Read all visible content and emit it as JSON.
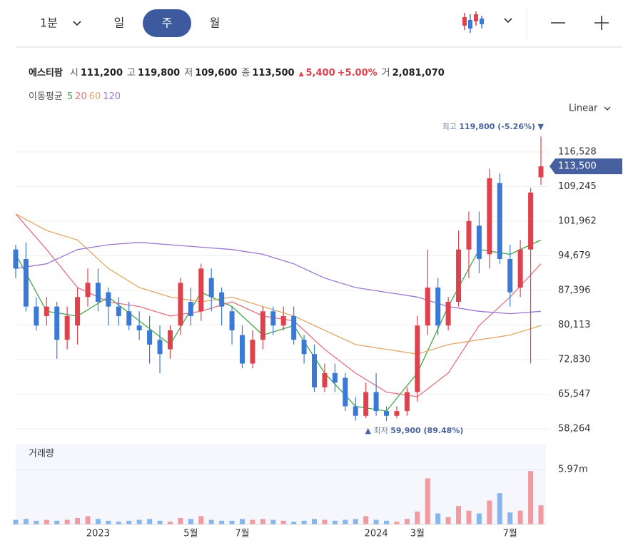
{
  "toolbar": {
    "interval": "1분",
    "tabs": [
      "일",
      "주",
      "월"
    ],
    "active": 1
  },
  "quote": {
    "name": "에스티팜",
    "fields": [
      {
        "label": "시",
        "value": "111,200"
      },
      {
        "label": "고",
        "value": "119,800"
      },
      {
        "label": "저",
        "value": "109,600"
      },
      {
        "label": "종",
        "value": "113,500"
      }
    ],
    "change_arrow": "▲",
    "change": "5,400",
    "change_pct": "+5.00%",
    "volume_label": "거",
    "volume": "2,081,070"
  },
  "ma_label": "이동평균",
  "scale_mode": "Linear",
  "chart_data": {
    "type": "candlestick",
    "categories": [
      null,
      null,
      null,
      null,
      null,
      null,
      null,
      null,
      "2023",
      null,
      null,
      null,
      null,
      null,
      null,
      null,
      null,
      "5월",
      null,
      null,
      null,
      null,
      "7월",
      null,
      null,
      null,
      null,
      null,
      null,
      null,
      null,
      null,
      null,
      null,
      null,
      "2024",
      null,
      null,
      null,
      "3월",
      null,
      null,
      null,
      null,
      null,
      null,
      null,
      null,
      "7월",
      null,
      null,
      null
    ],
    "open": [
      96000,
      94000,
      84000,
      82000,
      84000,
      77000,
      80000,
      86000,
      89000,
      87000,
      84000,
      83000,
      80000,
      79000,
      77000,
      75000,
      80000,
      85000,
      83000,
      90000,
      87000,
      83000,
      78000,
      72000,
      77000,
      83000,
      80000,
      82000,
      77000,
      74000,
      67000,
      70000,
      69000,
      63000,
      61000,
      66000,
      62000,
      61000,
      62000,
      66000,
      80000,
      88000,
      80000,
      85000,
      96000,
      101000,
      95000,
      110000,
      94000,
      88000,
      96000,
      111200
    ],
    "high": [
      97000,
      97500,
      86000,
      86000,
      85000,
      84000,
      88000,
      92000,
      92000,
      88000,
      86000,
      85000,
      83000,
      82000,
      80000,
      80000,
      90000,
      88000,
      93000,
      92000,
      88000,
      84000,
      80000,
      79000,
      84000,
      84000,
      84000,
      84000,
      78000,
      76000,
      72000,
      72000,
      70000,
      65000,
      68000,
      70000,
      63000,
      63000,
      67000,
      82000,
      96000,
      90000,
      86000,
      100000,
      104000,
      104000,
      113000,
      112000,
      97000,
      98000,
      109000,
      119800
    ],
    "low": [
      90000,
      83000,
      79000,
      80000,
      73000,
      75000,
      76000,
      84000,
      83000,
      80000,
      80000,
      79000,
      77000,
      72000,
      70000,
      73000,
      78000,
      80000,
      81000,
      83000,
      80000,
      76000,
      71000,
      71000,
      75000,
      78000,
      79000,
      76000,
      72000,
      66000,
      66000,
      66000,
      62000,
      60000,
      60500,
      61000,
      59900,
      60500,
      61000,
      64000,
      78000,
      78000,
      79000,
      84000,
      90000,
      91000,
      92000,
      93000,
      84000,
      86000,
      72000,
      109600
    ],
    "close": [
      92000,
      84000,
      80000,
      84000,
      77000,
      82000,
      86000,
      89000,
      85000,
      84000,
      82000,
      80000,
      79000,
      76000,
      74000,
      79000,
      89000,
      82000,
      92000,
      86000,
      84000,
      79000,
      72000,
      77000,
      83000,
      80000,
      82000,
      77000,
      74000,
      67000,
      70000,
      68000,
      63000,
      61000,
      66000,
      62000,
      61000,
      62000,
      66000,
      80000,
      88000,
      80000,
      85000,
      96000,
      102000,
      94000,
      111000,
      94000,
      87000,
      96000,
      108000,
      113500
    ],
    "up_color": "#e0424d",
    "down_color": "#3a7ad6",
    "ylim": [
      56162,
      120733
    ],
    "yticks": [
      {
        "value": 116528,
        "label": "116,528"
      },
      {
        "value": 109245,
        "label": "109,245"
      },
      {
        "value": 101962,
        "label": "101,962"
      },
      {
        "value": 94679,
        "label": "94,679"
      },
      {
        "value": 87396,
        "label": "87,396"
      },
      {
        "value": 80113,
        "label": "80,113"
      },
      {
        "value": 72830,
        "label": "72,830"
      },
      {
        "value": 65547,
        "label": "65,547"
      },
      {
        "value": 58264,
        "label": "58,264"
      }
    ],
    "grid": true,
    "current_price": {
      "value": 113500,
      "label": "113,500"
    },
    "annotations": [
      {
        "text": "최고",
        "value_label": "119,800 (-5.26%)",
        "value": 119800,
        "index": 51,
        "marker": "▼"
      },
      {
        "text": "최저",
        "value_label": "59,900 (89.48%)",
        "value": 59900,
        "index": 36,
        "marker": "▲"
      }
    ],
    "moving_averages": [
      {
        "name": "5",
        "color": "#43a84a",
        "x": [
          0,
          3,
          6,
          9,
          12,
          15,
          18,
          21,
          24,
          27,
          30,
          33,
          36,
          39,
          42,
          45,
          48,
          51
        ],
        "values": [
          95000,
          83000,
          82000,
          86000,
          81000,
          76000,
          87000,
          84000,
          78000,
          80000,
          70000,
          63000,
          62000,
          70000,
          84000,
          96000,
          95000,
          98000
        ]
      },
      {
        "name": "20",
        "color": "#e2737d",
        "x": [
          0,
          3,
          6,
          9,
          12,
          15,
          18,
          21,
          24,
          27,
          30,
          33,
          36,
          39,
          42,
          45,
          48,
          51
        ],
        "values": [
          103500,
          96000,
          88000,
          85000,
          84000,
          82000,
          83000,
          85000,
          82000,
          81000,
          75000,
          70000,
          66000,
          65000,
          70000,
          80000,
          86000,
          93000
        ]
      },
      {
        "name": "60",
        "color": "#e0a868",
        "x": [
          0,
          3,
          6,
          9,
          12,
          15,
          18,
          21,
          24,
          27,
          30,
          33,
          36,
          39,
          42,
          45,
          48,
          51
        ],
        "values": [
          103500,
          100000,
          98000,
          92000,
          88000,
          86000,
          85000,
          86000,
          84000,
          82000,
          79000,
          76000,
          75000,
          74000,
          76000,
          77000,
          78000,
          80000
        ]
      },
      {
        "name": "120",
        "color": "#9a77d0",
        "x": [
          0,
          3,
          6,
          9,
          12,
          15,
          18,
          21,
          24,
          27,
          30,
          33,
          36,
          39,
          42,
          45,
          48,
          51
        ],
        "values": [
          92000,
          93000,
          96000,
          97000,
          97500,
          97000,
          96500,
          96000,
          95000,
          93000,
          90000,
          88000,
          87000,
          86000,
          84000,
          83000,
          82500,
          83000
        ]
      }
    ],
    "volume": {
      "label": "거래량",
      "up_color": "#f09aa2",
      "down_color": "#86b6ec",
      "values": [
        500000,
        600000,
        400000,
        500000,
        400000,
        500000,
        700000,
        900000,
        600000,
        400000,
        300000,
        400000,
        500000,
        600000,
        400000,
        300000,
        700000,
        600000,
        900000,
        500000,
        400000,
        400000,
        600000,
        500000,
        600000,
        500000,
        400000,
        300000,
        400000,
        600000,
        500000,
        400000,
        500000,
        600000,
        900000,
        500000,
        400000,
        300000,
        600000,
        1400000,
        5000000,
        1200000,
        800000,
        2000000,
        1500000,
        1200000,
        2600000,
        3400000,
        1300000,
        1500000,
        5800000,
        2081070
      ],
      "ylim": [
        0,
        8760000
      ],
      "yticks": [
        {
          "value": 5970000,
          "label": "5.97m"
        }
      ]
    }
  }
}
